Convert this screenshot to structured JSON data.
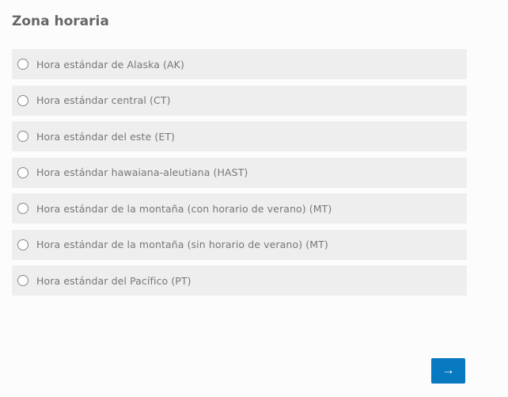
{
  "title": "Zona horaria",
  "options": [
    {
      "label": "Hora estándar de Alaska (AK)",
      "selected": false
    },
    {
      "label": "Hora estándar central (CT)",
      "selected": false
    },
    {
      "label": "Hora estándar del este (ET)",
      "selected": false
    },
    {
      "label": "Hora estándar hawaiana-aleutiana (HAST)",
      "selected": false
    },
    {
      "label": "Hora estándar de la montaña (con horario de verano) (MT)",
      "selected": false
    },
    {
      "label": "Hora estándar de la montaña (sin horario de verano) (MT)",
      "selected": false
    },
    {
      "label": "Hora estándar del Pacífico (PT)",
      "selected": false
    }
  ],
  "next_button": {
    "label": "→",
    "icon": "arrow-right-icon",
    "color": "#0679c1"
  }
}
